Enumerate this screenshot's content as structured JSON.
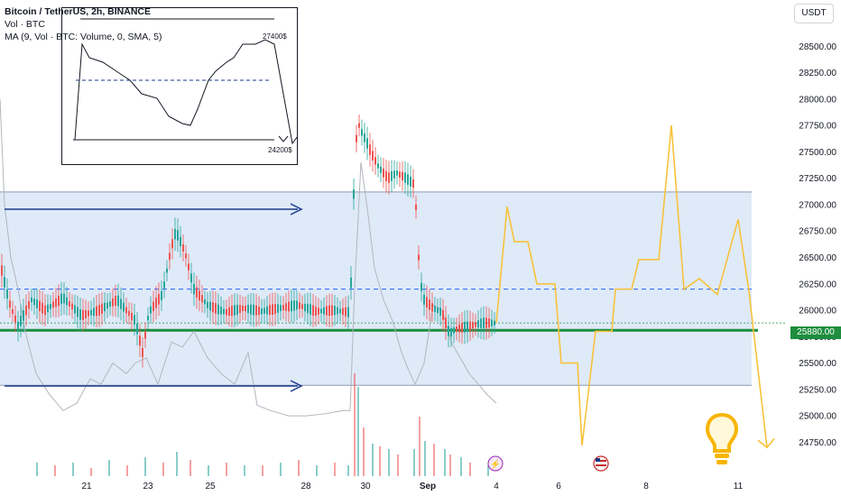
{
  "legend": {
    "title": "Bitcoin / TetherUS, 2h, BINANCE",
    "vol": "Vol · BTC",
    "ma": "MA (9, Vol · BTC: Volume, 0, SMA, 5)"
  },
  "currency_button": "USDT",
  "last_price": "25880.00",
  "inset": {
    "high_label": "27400$",
    "low_label": "24200$"
  },
  "colors": {
    "up": "#26a69a",
    "down": "#ef5350",
    "projection": "#f7c23b",
    "support": "#1e8e3e",
    "arrow": "#1a3a8c",
    "zone": "#dbe8f7",
    "ma_line": "#b2b5be"
  },
  "icons": [
    "lightning-icon",
    "us-flag-icon",
    "lightbulb-icon"
  ],
  "chart_data": {
    "type": "candlestick",
    "title": "Bitcoin / TetherUS, 2h, BINANCE",
    "ylim": [
      24600,
      28750
    ],
    "y_ticks": [
      "24750.00",
      "25000.00",
      "25250.00",
      "25500.00",
      "25750.00",
      "26000.00",
      "26250.00",
      "26500.00",
      "26750.00",
      "27000.00",
      "27250.00",
      "27500.00",
      "27750.00",
      "28000.00",
      "28250.00",
      "28500.00"
    ],
    "x_ticks": [
      "21",
      "23",
      "25",
      "28",
      "30",
      "Sep",
      "4",
      "6",
      "8",
      "11"
    ],
    "levels": {
      "zone_top": 27120,
      "zone_bottom": 25290,
      "dashed_resistance": 26200,
      "support": 25810
    },
    "price_path": [
      [
        0,
        26450
      ],
      [
        10,
        26080
      ],
      [
        20,
        25850
      ],
      [
        35,
        26100
      ],
      [
        50,
        26000
      ],
      [
        70,
        26120
      ],
      [
        90,
        25950
      ],
      [
        110,
        26000
      ],
      [
        130,
        26100
      ],
      [
        150,
        25900
      ],
      [
        158,
        25600
      ],
      [
        165,
        25980
      ],
      [
        180,
        26150
      ],
      [
        190,
        26600
      ],
      [
        195,
        26750
      ],
      [
        205,
        26550
      ],
      [
        215,
        26200
      ],
      [
        230,
        26050
      ],
      [
        250,
        25980
      ],
      [
        270,
        26020
      ],
      [
        290,
        25990
      ],
      [
        310,
        26020
      ],
      [
        330,
        26050
      ],
      [
        350,
        25990
      ],
      [
        370,
        26000
      ],
      [
        388,
        25980
      ],
      [
        392,
        27100
      ],
      [
        396,
        27800
      ],
      [
        400,
        27700
      ],
      [
        406,
        27600
      ],
      [
        412,
        27480
      ],
      [
        420,
        27350
      ],
      [
        430,
        27250
      ],
      [
        440,
        27300
      ],
      [
        450,
        27250
      ],
      [
        458,
        27200
      ],
      [
        462,
        26900
      ],
      [
        465,
        26300
      ],
      [
        470,
        26100
      ],
      [
        480,
        26020
      ],
      [
        490,
        25980
      ],
      [
        498,
        25780
      ],
      [
        505,
        25820
      ],
      [
        520,
        25850
      ],
      [
        535,
        25880
      ],
      [
        550,
        25880
      ]
    ],
    "projection": [
      [
        550,
        25880
      ],
      [
        562,
        26980
      ],
      [
        570,
        26650
      ],
      [
        585,
        26650
      ],
      [
        595,
        26250
      ],
      [
        615,
        26250
      ],
      [
        622,
        25500
      ],
      [
        640,
        25500
      ],
      [
        645,
        24720
      ],
      [
        660,
        25800
      ],
      [
        678,
        25800
      ],
      [
        682,
        26200
      ],
      [
        700,
        26200
      ],
      [
        708,
        26480
      ],
      [
        730,
        26480
      ],
      [
        744,
        27750
      ],
      [
        758,
        26200
      ],
      [
        775,
        26300
      ],
      [
        795,
        26150
      ],
      [
        818,
        26860
      ],
      [
        830,
        26180
      ],
      [
        850,
        24700
      ]
    ],
    "ma_line": [
      [
        0,
        28000
      ],
      [
        5,
        27000
      ],
      [
        12,
        26500
      ],
      [
        20,
        26200
      ],
      [
        28,
        25800
      ],
      [
        40,
        25400
      ],
      [
        55,
        25200
      ],
      [
        70,
        25050
      ],
      [
        85,
        25120
      ],
      [
        100,
        25350
      ],
      [
        112,
        25300
      ],
      [
        125,
        25500
      ],
      [
        140,
        25400
      ],
      [
        150,
        25500
      ],
      [
        162,
        25550
      ],
      [
        175,
        25300
      ],
      [
        190,
        25700
      ],
      [
        202,
        25650
      ],
      [
        215,
        25800
      ],
      [
        230,
        25550
      ],
      [
        245,
        25400
      ],
      [
        260,
        25300
      ],
      [
        275,
        25600
      ],
      [
        285,
        25100
      ],
      [
        300,
        25050
      ],
      [
        320,
        25000
      ],
      [
        340,
        25000
      ],
      [
        360,
        25020
      ],
      [
        380,
        25050
      ],
      [
        388,
        25050
      ],
      [
        393,
        26200
      ],
      [
        400,
        27400
      ],
      [
        408,
        26900
      ],
      [
        415,
        26400
      ],
      [
        425,
        26100
      ],
      [
        435,
        25900
      ],
      [
        445,
        25600
      ],
      [
        452,
        25450
      ],
      [
        460,
        25300
      ],
      [
        470,
        25500
      ],
      [
        480,
        26050
      ],
      [
        490,
        26000
      ],
      [
        500,
        25700
      ],
      [
        520,
        25400
      ],
      [
        540,
        25200
      ],
      [
        550,
        25120
      ]
    ],
    "volume": [
      [
        40,
        0.05
      ],
      [
        60,
        0.04
      ],
      [
        80,
        0.05
      ],
      [
        100,
        0.03
      ],
      [
        120,
        0.06
      ],
      [
        140,
        0.04
      ],
      [
        160,
        0.07
      ],
      [
        180,
        0.05
      ],
      [
        195,
        0.09
      ],
      [
        210,
        0.06
      ],
      [
        230,
        0.04
      ],
      [
        250,
        0.05
      ],
      [
        270,
        0.04
      ],
      [
        290,
        0.04
      ],
      [
        310,
        0.05
      ],
      [
        330,
        0.06
      ],
      [
        350,
        0.04
      ],
      [
        370,
        0.05
      ],
      [
        385,
        0.04
      ],
      [
        392,
        0.38
      ],
      [
        396,
        0.33
      ],
      [
        402,
        0.18
      ],
      [
        412,
        0.12
      ],
      [
        420,
        0.11
      ],
      [
        430,
        0.1
      ],
      [
        440,
        0.08
      ],
      [
        458,
        0.1
      ],
      [
        464,
        0.22
      ],
      [
        470,
        0.13
      ],
      [
        480,
        0.12
      ],
      [
        492,
        0.1
      ],
      [
        498,
        0.08
      ],
      [
        510,
        0.07
      ],
      [
        520,
        0.05
      ],
      [
        540,
        0.04
      ]
    ],
    "annotations": [
      "27400$",
      "24200$"
    ]
  }
}
